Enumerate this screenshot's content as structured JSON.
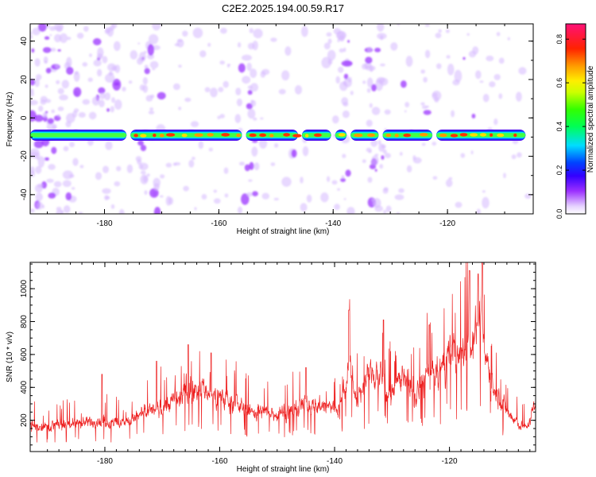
{
  "page_title": "C2E2.2025.194.00.59.R17",
  "chart_data": [
    {
      "type": "heatmap",
      "title": "C2E2.2025.194.00.59.R17",
      "xlabel": "Height of straight line (km)",
      "ylabel": "Frequency (Hz)",
      "xlim": [
        -193,
        -105
      ],
      "ylim": [
        -50,
        49
      ],
      "xticks": [
        -180,
        -160,
        -140,
        -120
      ],
      "yticks": [
        -40,
        -20,
        0,
        20,
        40
      ],
      "colorbar": {
        "label": "Normalized spectral amplitude",
        "range": [
          0,
          0.87
        ],
        "ticks": [
          "0.0",
          "0.2",
          "0.4",
          "0.6",
          "0.8"
        ],
        "colors": [
          "#ffffff",
          "#d7b8ff",
          "#8a2be2",
          "#0000ff",
          "#00ffff",
          "#00ff00",
          "#ffff00",
          "#ff8000",
          "#ff0000",
          "#ff1493"
        ]
      },
      "band": {
        "frequency_hz": -9,
        "gaps_km": [
          -175.8,
          -155.6,
          -145.8,
          -140.0,
          -137.3,
          -131.7,
          -122.3
        ]
      },
      "noise_columns_km": [
        -191,
        -186.5,
        -179.5,
        -172.5,
        -155,
        -138.8,
        -132
      ]
    },
    {
      "type": "line",
      "xlabel": "Height of straight line (km)",
      "ylabel": "SNR (10 * v/v)",
      "xlim": [
        -193,
        -105
      ],
      "ylim": [
        10,
        1160
      ],
      "xticks": [
        -180,
        -160,
        -140,
        -120
      ],
      "yticks": [
        200,
        400,
        600,
        800,
        1000
      ],
      "line_color": "#ee2222",
      "envelope": {
        "x": [
          -193,
          -190,
          -186,
          -183,
          -181,
          -179,
          -177,
          -175,
          -173,
          -171,
          -169,
          -167,
          -165,
          -163,
          -161,
          -159,
          -157,
          -155,
          -153,
          -151,
          -149,
          -147,
          -145,
          -143,
          -141,
          -139,
          -137.5,
          -136,
          -134,
          -132,
          -130,
          -128,
          -126,
          -124,
          -122,
          -120,
          -118,
          -116.5,
          -115,
          -113.5,
          -112,
          -110,
          -108,
          -106.5,
          -105
        ],
        "y": [
          170,
          165,
          175,
          190,
          200,
          185,
          180,
          210,
          240,
          270,
          300,
          330,
          380,
          400,
          350,
          330,
          300,
          255,
          250,
          245,
          250,
          265,
          295,
          290,
          280,
          280,
          560,
          320,
          490,
          460,
          340,
          510,
          330,
          480,
          470,
          620,
          560,
          680,
          820,
          560,
          380,
          260,
          170,
          160,
          300
        ]
      },
      "peaks": {
        "x": [
          -180.5,
          -171,
          -165.5,
          -161.5,
          -145,
          -137.5,
          -131.5,
          -123.5,
          -116.5,
          -115,
          -114.3
        ],
        "y": [
          480,
          560,
          660,
          610,
          520,
          870,
          810,
          780,
          1110,
          1090,
          1160
        ]
      }
    }
  ]
}
